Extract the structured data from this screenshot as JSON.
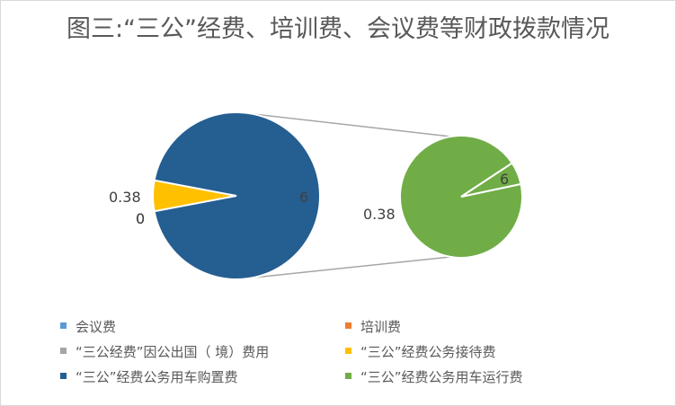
{
  "chart_data": {
    "type": "pie-of-pie",
    "title": "图三:“三公”经费、培训费、会议费等财政拨款情况",
    "categories": [
      "会议费",
      "培训费",
      "“三公经费”因公出国（ 境）费用",
      "“三公”经费公务接待费",
      "“三公”经费公务用车购置费",
      "“三公”经费公务用车运行费"
    ],
    "values": [
      0,
      0,
      0,
      0.38,
      6,
      0.38
    ],
    "colors": [
      "#5b9bd5",
      "#ed7d31",
      "#a5a5a5",
      "#ffc000",
      "#255e91",
      "#70ad47"
    ],
    "main_pie": {
      "slices": [
        {
          "label": "0.38",
          "value": 0.38,
          "color": "#ffc000"
        },
        {
          "label": "0",
          "value": 0,
          "color": "#5b9bd5"
        },
        {
          "label": "0",
          "value": 0,
          "color": "#ed7d31"
        },
        {
          "label": "6",
          "value": 6,
          "color": "#255e91"
        }
      ]
    },
    "secondary_pie": {
      "slices": [
        {
          "label": "6",
          "value": 6,
          "color": "#70ad47"
        },
        {
          "label": "0.38",
          "value": 0.38,
          "color": "#70ad47"
        }
      ]
    },
    "legend_position": "bottom"
  }
}
